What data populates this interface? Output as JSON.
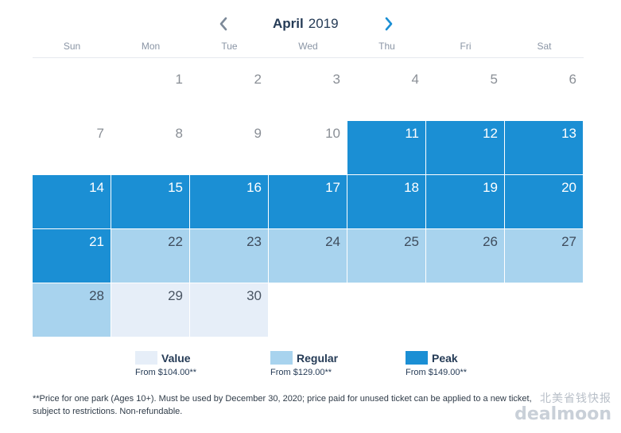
{
  "header": {
    "month": "April",
    "year": "2019",
    "prev_icon": "chevron-left-icon",
    "next_icon": "chevron-right-icon"
  },
  "weekdays": [
    "Sun",
    "Mon",
    "Tue",
    "Wed",
    "Thu",
    "Fri",
    "Sat"
  ],
  "calendar": {
    "leading_blank_days": 1,
    "days": [
      {
        "day": "1",
        "tier": "none"
      },
      {
        "day": "2",
        "tier": "none"
      },
      {
        "day": "3",
        "tier": "none"
      },
      {
        "day": "4",
        "tier": "none"
      },
      {
        "day": "5",
        "tier": "none"
      },
      {
        "day": "6",
        "tier": "none"
      },
      {
        "day": "7",
        "tier": "none"
      },
      {
        "day": "8",
        "tier": "none"
      },
      {
        "day": "9",
        "tier": "none"
      },
      {
        "day": "10",
        "tier": "none"
      },
      {
        "day": "11",
        "tier": "peak"
      },
      {
        "day": "12",
        "tier": "peak"
      },
      {
        "day": "13",
        "tier": "peak"
      },
      {
        "day": "14",
        "tier": "peak"
      },
      {
        "day": "15",
        "tier": "peak"
      },
      {
        "day": "16",
        "tier": "peak"
      },
      {
        "day": "17",
        "tier": "peak"
      },
      {
        "day": "18",
        "tier": "peak"
      },
      {
        "day": "19",
        "tier": "peak"
      },
      {
        "day": "20",
        "tier": "peak"
      },
      {
        "day": "21",
        "tier": "peak"
      },
      {
        "day": "22",
        "tier": "regular"
      },
      {
        "day": "23",
        "tier": "regular"
      },
      {
        "day": "24",
        "tier": "regular"
      },
      {
        "day": "25",
        "tier": "regular"
      },
      {
        "day": "26",
        "tier": "regular"
      },
      {
        "day": "27",
        "tier": "regular"
      },
      {
        "day": "28",
        "tier": "regular"
      },
      {
        "day": "29",
        "tier": "value"
      },
      {
        "day": "30",
        "tier": "value"
      }
    ]
  },
  "legend": {
    "value": {
      "label": "Value",
      "price": "From $104.00**",
      "color": "#e6eef8"
    },
    "regular": {
      "label": "Regular",
      "price": "From $129.00**",
      "color": "#a8d3ee"
    },
    "peak": {
      "label": "Peak",
      "price": "From $149.00**",
      "color": "#1b8fd4"
    }
  },
  "footnote": "**Price for one park (Ages 10+). Must be used by December 30, 2020; price paid for unused ticket can be applied to a new ticket, subject to restrictions. Non-refundable.",
  "watermark": {
    "text_cn": "北美省钱快报",
    "logo": "dealmoon"
  }
}
